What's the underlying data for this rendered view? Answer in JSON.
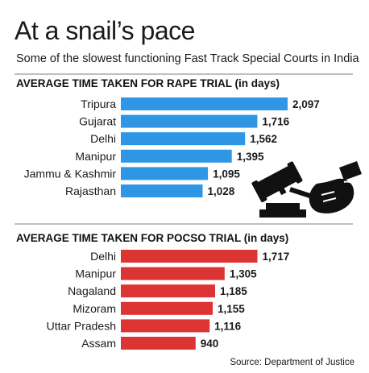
{
  "title": "At a snail’s pace",
  "subtitle": "Some of the slowest functioning Fast Track Special Courts in India",
  "source": "Source: Department of Justice",
  "colors": {
    "rape": "#2f96e6",
    "pocso": "#dc3433"
  },
  "icons": [
    "gavel-icon",
    "handcuffs-icon"
  ],
  "chart_data": [
    {
      "type": "bar",
      "orientation": "horizontal",
      "title": "AVERAGE TIME TAKEN FOR RAPE TRIAL (in days)",
      "categories": [
        "Tripura",
        "Gujarat",
        "Delhi",
        "Manipur",
        "Jammu & Kashmir",
        "Rajasthan"
      ],
      "values": [
        2097,
        1716,
        1562,
        1395,
        1095,
        1028
      ]
    },
    {
      "type": "bar",
      "orientation": "horizontal",
      "title": "AVERAGE TIME TAKEN FOR POCSO TRIAL (in days)",
      "categories": [
        "Delhi",
        "Manipur",
        "Nagaland",
        "Mizoram",
        "Uttar Pradesh",
        "Assam"
      ],
      "values": [
        1717,
        1305,
        1185,
        1155,
        1116,
        940
      ]
    }
  ]
}
